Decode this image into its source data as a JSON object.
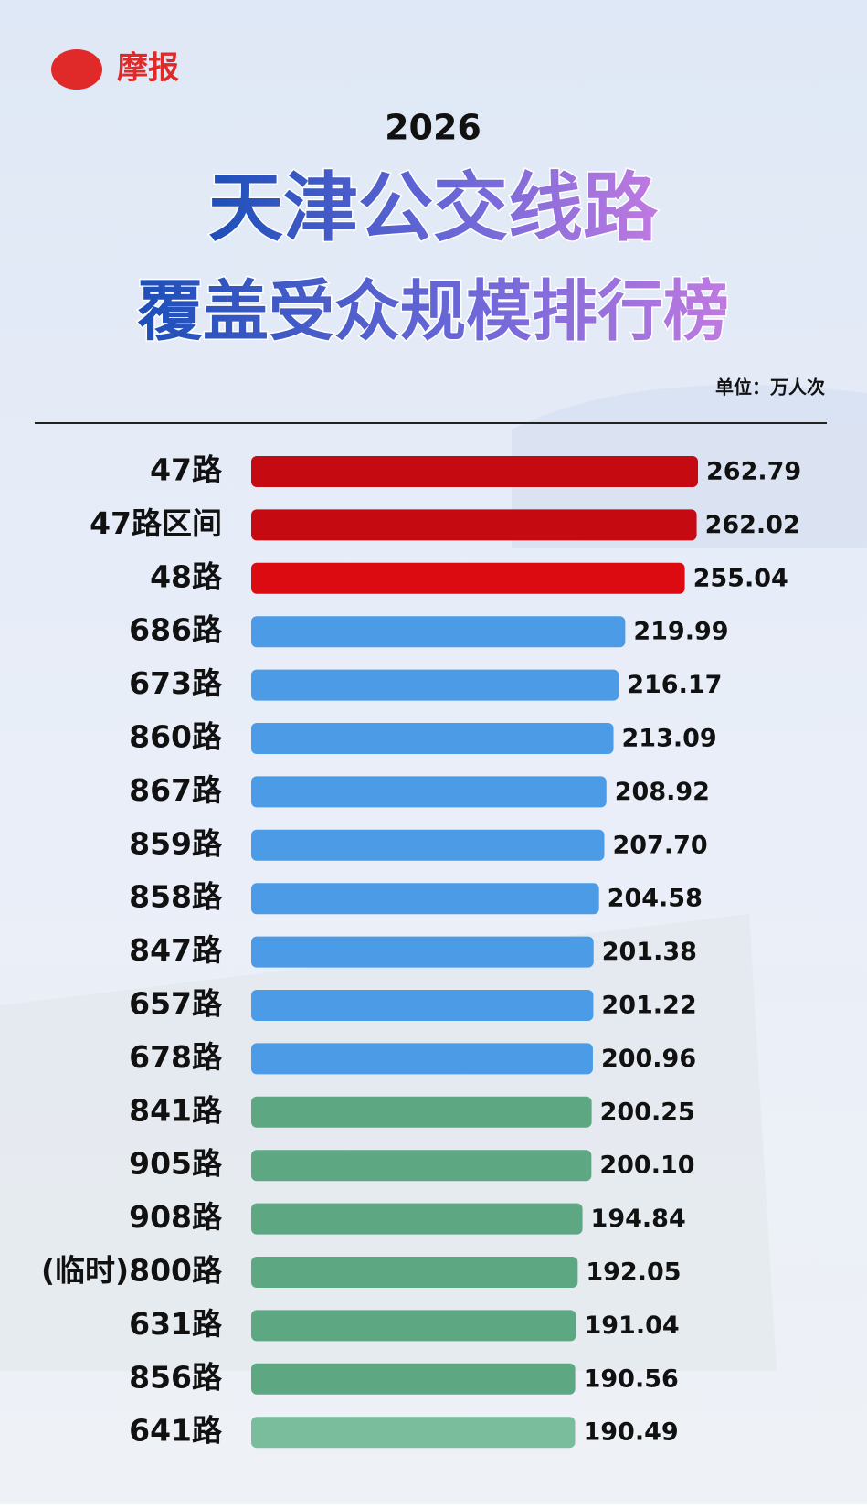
{
  "chart_data": {
    "type": "bar",
    "orientation": "horizontal",
    "source": "摩报",
    "year": "2026",
    "title": "天津公交线路",
    "subtitle": "覆盖受众规模排行榜",
    "unit": "单位：万人次",
    "categories": [
      "47路",
      "47路区间",
      "48路",
      "686路",
      "673路",
      "860路",
      "867路",
      "859路",
      "858路",
      "847路",
      "657路",
      "678路",
      "841路",
      "905路",
      "908路",
      "(临时)800路",
      "631路",
      "856路",
      "641路"
    ],
    "values": [
      262.79,
      262.02,
      255.04,
      219.99,
      216.17,
      213.09,
      208.92,
      207.7,
      204.58,
      201.38,
      201.22,
      200.96,
      200.25,
      200.1,
      194.84,
      192.05,
      191.04,
      190.56,
      190.49
    ],
    "value_labels": [
      "262.79",
      "262.02",
      "255.04",
      "219.99",
      "216.17",
      "213.09",
      "208.92",
      "207.70",
      "204.58",
      "201.38",
      "201.22",
      "200.96",
      "200.25",
      "200.10",
      "194.84",
      "192.05",
      "191.04",
      "190.56",
      "190.49"
    ],
    "colors": [
      "#c50a12",
      "#c50a12",
      "#dc0b12",
      "#4b9be6",
      "#4b9be6",
      "#4b9be6",
      "#4b9be6",
      "#4b9be6",
      "#4b9be6",
      "#4b9be6",
      "#4b9be6",
      "#4b9be6",
      "#5da883",
      "#5da883",
      "#5da883",
      "#5da883",
      "#5da883",
      "#5da883",
      "#79bd9c"
    ]
  }
}
